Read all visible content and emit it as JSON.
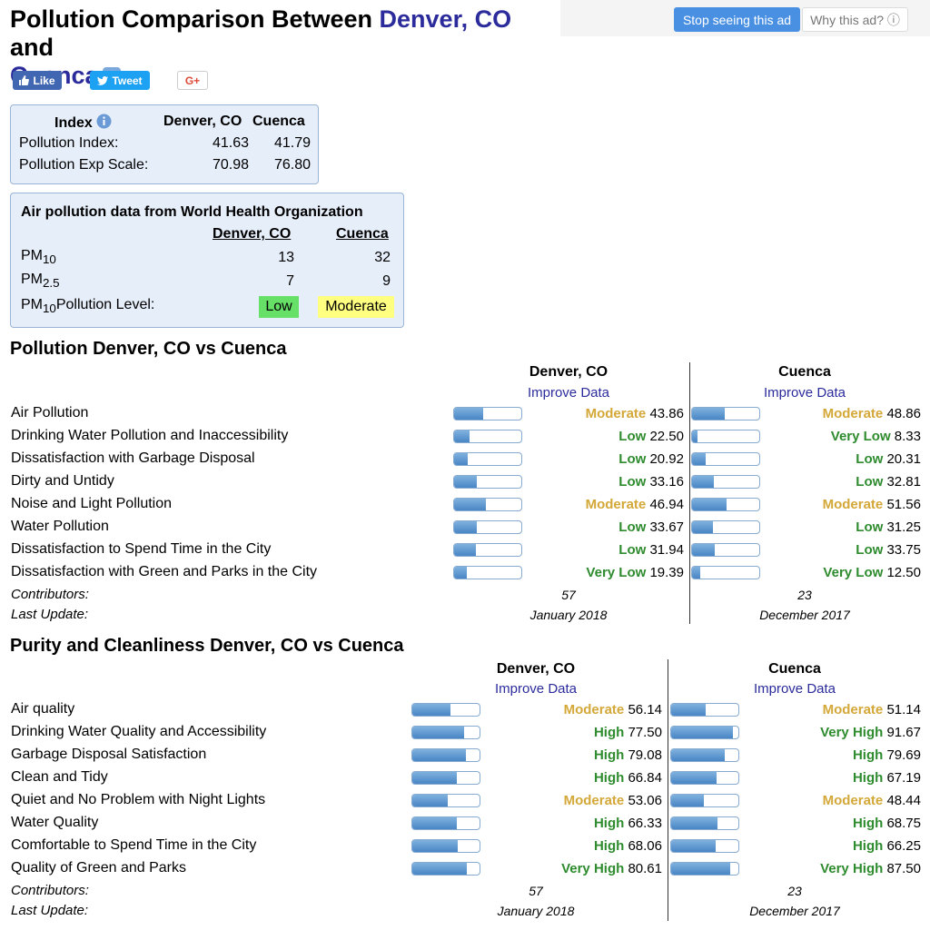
{
  "page": {
    "title_prefix": "Pollution Comparison Between ",
    "city1": "Denver, CO",
    "title_and": " and",
    "city2": "Cuenca"
  },
  "ads": {
    "stop_label": "Stop seeing this ad",
    "why_label": "Why this ad? ⓘ"
  },
  "social": {
    "like": "Like",
    "tweet": "Tweet",
    "gplus": "G+"
  },
  "index_box": {
    "header_index": "Index",
    "header_city1": "Denver, CO",
    "header_city2": "Cuenca",
    "rows": [
      {
        "label": "Pollution Index:",
        "v1": "41.63",
        "v2": "41.79"
      },
      {
        "label": "Pollution Exp Scale:",
        "v1": "70.98",
        "v2": "76.80"
      }
    ]
  },
  "who_box": {
    "title": "Air pollution data from World Health Organization",
    "city1": "Denver, CO",
    "city2": "Cuenca",
    "pm10_label": "PM",
    "pm10_sub": "10",
    "pm25_label": "PM",
    "pm25_sub": "2.5",
    "pm10_v1": "13",
    "pm10_v2": "32",
    "pm25_v1": "7",
    "pm25_v2": "9",
    "level_label_pre": "PM",
    "level_label_sub": "10",
    "level_label_post": "Pollution Level:",
    "level1": "Low",
    "level1_color": "#66e066",
    "level2": "Moderate",
    "level2_color": "#ffff80"
  },
  "colors": {
    "moderate": "#d4a838",
    "low": "#2e8b2e",
    "high": "#2e8b2e",
    "link": "#2b2b9c"
  },
  "pollution": {
    "title": "Pollution Denver, CO vs Cuenca",
    "city1": "Denver, CO",
    "city2": "Cuenca",
    "improve1": "Improve Data",
    "improve2": "Improve Data",
    "rows": [
      {
        "label": "Air Pollution",
        "r1": "Moderate",
        "v1": "43.86",
        "r2": "Moderate",
        "v2": "48.86"
      },
      {
        "label": "Drinking Water Pollution and Inaccessibility",
        "r1": "Low",
        "v1": "22.50",
        "r2": "Very Low",
        "v2": "8.33"
      },
      {
        "label": "Dissatisfaction with Garbage Disposal",
        "r1": "Low",
        "v1": "20.92",
        "r2": "Low",
        "v2": "20.31"
      },
      {
        "label": "Dirty and Untidy",
        "r1": "Low",
        "v1": "33.16",
        "r2": "Low",
        "v2": "32.81"
      },
      {
        "label": "Noise and Light Pollution",
        "r1": "Moderate",
        "v1": "46.94",
        "r2": "Moderate",
        "v2": "51.56"
      },
      {
        "label": "Water Pollution",
        "r1": "Low",
        "v1": "33.67",
        "r2": "Low",
        "v2": "31.25"
      },
      {
        "label": "Dissatisfaction to Spend Time in the City",
        "r1": "Low",
        "v1": "31.94",
        "r2": "Low",
        "v2": "33.75"
      },
      {
        "label": "Dissatisfaction with Green and Parks in the City",
        "r1": "Very Low",
        "v1": "19.39",
        "r2": "Very Low",
        "v2": "12.50"
      }
    ],
    "contributors_label": "Contributors:",
    "contributors1": "57",
    "contributors2": "23",
    "update_label": "Last Update:",
    "update1": "January 2018",
    "update2": "December 2017"
  },
  "purity": {
    "title": "Purity and Cleanliness Denver, CO vs Cuenca",
    "city1": "Denver, CO",
    "city2": "Cuenca",
    "improve1": "Improve Data",
    "improve2": "Improve Data",
    "rows": [
      {
        "label": "Air quality",
        "r1": "Moderate",
        "v1": "56.14",
        "r2": "Moderate",
        "v2": "51.14"
      },
      {
        "label": "Drinking Water Quality and Accessibility",
        "r1": "High",
        "v1": "77.50",
        "r2": "Very High",
        "v2": "91.67"
      },
      {
        "label": "Garbage Disposal Satisfaction",
        "r1": "High",
        "v1": "79.08",
        "r2": "High",
        "v2": "79.69"
      },
      {
        "label": "Clean and Tidy",
        "r1": "High",
        "v1": "66.84",
        "r2": "High",
        "v2": "67.19"
      },
      {
        "label": "Quiet and No Problem with Night Lights",
        "r1": "Moderate",
        "v1": "53.06",
        "r2": "Moderate",
        "v2": "48.44"
      },
      {
        "label": "Water Quality",
        "r1": "High",
        "v1": "66.33",
        "r2": "High",
        "v2": "68.75"
      },
      {
        "label": "Comfortable to Spend Time in the City",
        "r1": "High",
        "v1": "68.06",
        "r2": "High",
        "v2": "66.25"
      },
      {
        "label": "Quality of Green and Parks",
        "r1": "Very High",
        "v1": "80.61",
        "r2": "Very High",
        "v2": "87.50"
      }
    ],
    "contributors_label": "Contributors:",
    "contributors1": "57",
    "contributors2": "23",
    "update_label": "Last Update:",
    "update1": "January 2018",
    "update2": "December 2017"
  }
}
